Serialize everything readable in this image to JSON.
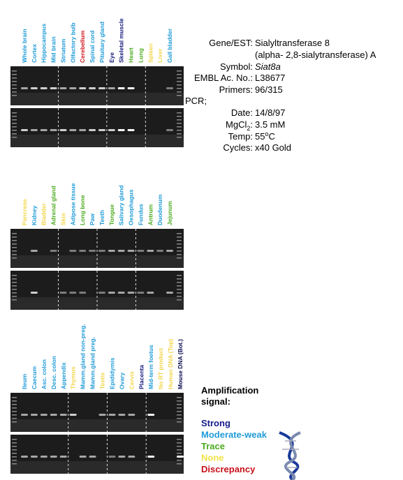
{
  "panels": [
    {
      "lanes": [
        {
          "label": "Whole brain",
          "color": "#1e9bd7"
        },
        {
          "label": "Cortex",
          "color": "#1e9bd7"
        },
        {
          "label": "Hippocampus",
          "color": "#1e9bd7"
        },
        {
          "label": "Mid brain",
          "color": "#1e9bd7"
        },
        {
          "label": "Striatum",
          "color": "#1e9bd7"
        },
        {
          "label": "Olfactory bulb",
          "color": "#1e9bd7"
        },
        {
          "label": "Cerebellum",
          "color": "#d0161c"
        },
        {
          "label": "Spinal cord",
          "color": "#1e9bd7"
        },
        {
          "label": "Pituitary gland",
          "color": "#1e9bd7"
        },
        {
          "label": "Eye",
          "color": "#141a7a"
        },
        {
          "label": "Skeletal muscle",
          "color": "#141a7a"
        },
        {
          "label": "Heart",
          "color": "#4cab1f"
        },
        {
          "label": "Lung",
          "color": "#4cab1f"
        },
        {
          "label": "Spleen",
          "color": "#f2d64a"
        },
        {
          "label": "Liver",
          "color": "#f2d64a"
        },
        {
          "label": "Gall bladder",
          "color": "#1e9bd7"
        }
      ]
    },
    {
      "lanes": [
        {
          "label": "Pancreas",
          "color": "#f2d64a"
        },
        {
          "label": "Kidney",
          "color": "#1e9bd7"
        },
        {
          "label": "Bladder",
          "color": "#f2d64a"
        },
        {
          "label": "Adrenal gland",
          "color": "#4cab1f"
        },
        {
          "label": "Skin",
          "color": "#f2d64a"
        },
        {
          "label": "Adipose tissue",
          "color": "#1e9bd7"
        },
        {
          "label": "Long bone",
          "color": "#4cab1f"
        },
        {
          "label": "Paw",
          "color": "#1e9bd7"
        },
        {
          "label": "Teeth",
          "color": "#1e9bd7"
        },
        {
          "label": "Tongue",
          "color": "#4cab1f"
        },
        {
          "label": "Salivary gland",
          "color": "#1e9bd7"
        },
        {
          "label": "Oesophagus",
          "color": "#1e9bd7"
        },
        {
          "label": "Fundus",
          "color": "#1e9bd7"
        },
        {
          "label": "Antrum",
          "color": "#4cab1f"
        },
        {
          "label": "Duodenum",
          "color": "#1e9bd7"
        },
        {
          "label": "Jejunum",
          "color": "#4cab1f"
        }
      ]
    },
    {
      "lanes": [
        {
          "label": "Ileum",
          "color": "#1e9bd7"
        },
        {
          "label": "Caecum",
          "color": "#1e9bd7"
        },
        {
          "label": "Asc. colon",
          "color": "#1e9bd7"
        },
        {
          "label": "Desc. colon",
          "color": "#1e9bd7"
        },
        {
          "label": "Appendix",
          "color": "#1e9bd7"
        },
        {
          "label": "Thymus",
          "color": "#f2d64a"
        },
        {
          "label": "Mamm.gland non-preg.",
          "color": "#1e9bd7"
        },
        {
          "label": "Mamm.gland preg.",
          "color": "#1e9bd7"
        },
        {
          "label": "Testis",
          "color": "#f2d64a"
        },
        {
          "label": "Epididymis",
          "color": "#1e9bd7"
        },
        {
          "label": "Ovary",
          "color": "#1e9bd7"
        },
        {
          "label": "Cervix",
          "color": "#f2d64a"
        },
        {
          "label": "Placenta",
          "color": "#141a7a"
        },
        {
          "label": "Mid-term foetus",
          "color": "#1e9bd7"
        },
        {
          "label": "No RT product",
          "color": "#f2d64a"
        },
        {
          "label": "Human DNA (Top)",
          "color": "#f2d64a"
        },
        {
          "label": "Mouse DNA (Bot.)",
          "color": "#0a0a50"
        }
      ]
    }
  ],
  "gene_info": {
    "rows": [
      {
        "label": "Gene/EST:",
        "value": "Sialyltransferase 8"
      },
      {
        "value": "(alpha- 2,8-sialytransferase) A"
      },
      {
        "label": "Symbol:",
        "value": "Siat8a",
        "italic": true
      },
      {
        "label": "EMBL Ac. No.:",
        "value": "L38677"
      },
      {
        "label": "Primers:",
        "value": "96/315"
      },
      {
        "label": "PCR;"
      },
      {
        "label": "Date:",
        "value": "14/8/97"
      },
      {
        "label_parts": [
          "MgCl",
          "2",
          ":"
        ],
        "value": "3.5 mM"
      },
      {
        "label": "Temp:",
        "value_parts": [
          "55",
          "o",
          "C"
        ]
      },
      {
        "label": "Cycles:",
        "value": "x40 Gold"
      }
    ]
  },
  "legend": {
    "title": "Amplification",
    "subtitle": "signal:",
    "items": [
      {
        "label": "Strong",
        "color": "#141a8a"
      },
      {
        "label": "Moderate-weak",
        "color": "#1e9bd7"
      },
      {
        "label": "Trace",
        "color": "#4cab1f"
      },
      {
        "label": "None",
        "color": "#f2e24a"
      },
      {
        "label": "Discrepancy",
        "color": "#c8101a"
      }
    ]
  }
}
